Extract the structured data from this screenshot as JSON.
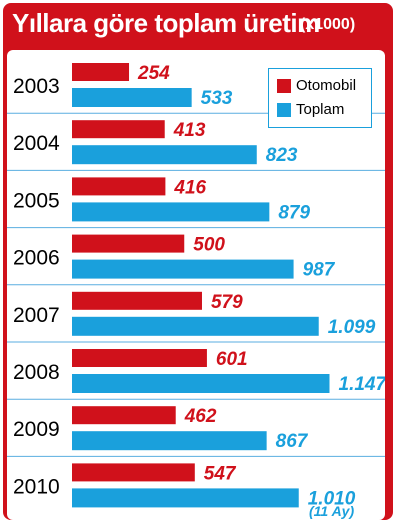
{
  "title": "Yıllara göre toplam üretim",
  "unit": "(x1000)",
  "legend": [
    {
      "label": "Otomobil",
      "color": "#d0111b"
    },
    {
      "label": "Toplam",
      "color": "#1aa0dc"
    }
  ],
  "note": "(11 Ay)",
  "chart_data": {
    "type": "bar",
    "orientation": "horizontal",
    "title": "Yıllara göre toplam üretim",
    "unit": "(x1000)",
    "categories": [
      "2003",
      "2004",
      "2005",
      "2006",
      "2007",
      "2008",
      "2009",
      "2010"
    ],
    "series": [
      {
        "name": "Otomobil",
        "color": "#d0111b",
        "values": [
          254,
          413,
          416,
          500,
          579,
          601,
          462,
          547
        ],
        "labels": [
          "254",
          "413",
          "416",
          "500",
          "579",
          "601",
          "462",
          "547"
        ]
      },
      {
        "name": "Toplam",
        "color": "#1aa0dc",
        "values": [
          533,
          823,
          879,
          987,
          1099,
          1147,
          867,
          1010
        ],
        "labels": [
          "533",
          "823",
          "879",
          "987",
          "1.099",
          "1.147",
          "867",
          "1.010"
        ]
      }
    ],
    "legend": "top-right"
  }
}
